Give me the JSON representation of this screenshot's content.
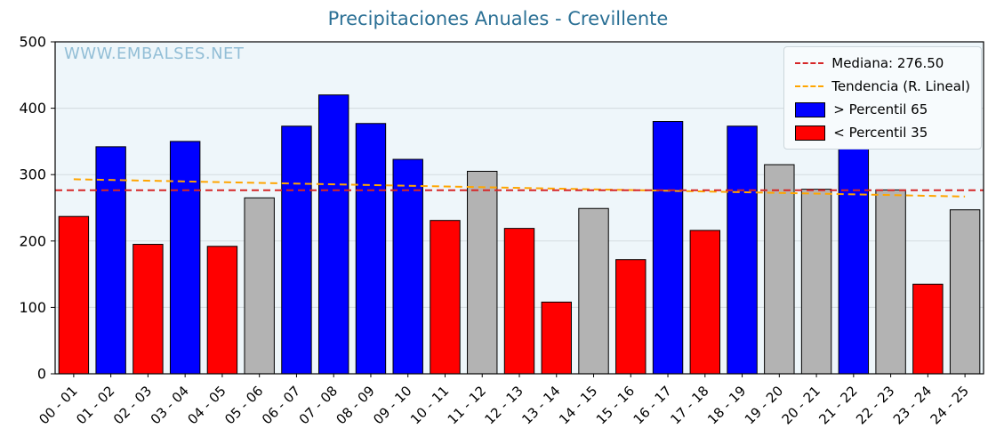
{
  "page": {
    "title": "Precipitaciones Anuales - Crevillente",
    "watermark": "WWW.EMBALSES.NET"
  },
  "legend": {
    "items": [
      {
        "label": "Mediana: 276.50",
        "swatch": "dashed-line",
        "color": "#d62728"
      },
      {
        "label": "Tendencia (R. Lineal)",
        "swatch": "dashed-line",
        "color": "#ffa500"
      },
      {
        "label": "> Percentil 65",
        "swatch": "patch",
        "color": "#0000ff"
      },
      {
        "label": "< Percentil 35",
        "swatch": "patch",
        "color": "#ff0000"
      }
    ]
  },
  "chart_data": {
    "type": "bar",
    "title": "Precipitaciones Anuales - Crevillente",
    "categories": [
      "00 - 01",
      "01 - 02",
      "02 - 03",
      "03 - 04",
      "04 - 05",
      "05 - 06",
      "06 - 07",
      "07 - 08",
      "08 - 09",
      "09 - 10",
      "10 - 11",
      "11 - 12",
      "12 - 13",
      "13 - 14",
      "14 - 15",
      "15 - 16",
      "16 - 17",
      "17 - 18",
      "18 - 19",
      "19 - 20",
      "20 - 21",
      "21 - 22",
      "22 - 23",
      "23 - 24",
      "24 - 25"
    ],
    "values": [
      237,
      342,
      195,
      350,
      192,
      265,
      373,
      420,
      377,
      323,
      231,
      305,
      219,
      108,
      249,
      172,
      380,
      216,
      373,
      315,
      278,
      415,
      277,
      135,
      247
    ],
    "classes": [
      "below",
      "above",
      "below",
      "above",
      "below",
      "mid",
      "above",
      "above",
      "above",
      "above",
      "below",
      "mid",
      "below",
      "below",
      "mid",
      "below",
      "above",
      "below",
      "above",
      "mid",
      "mid",
      "above",
      "mid",
      "below",
      "mid"
    ],
    "class_colors": {
      "above": "#0000ff",
      "below": "#ff0000",
      "mid": "#b3b3b3"
    },
    "bar_edge_color": "#000000",
    "median": 276.5,
    "median_label": "Mediana: 276.50",
    "median_color": "#d62728",
    "trend": {
      "label": "Tendencia (R. Lineal)",
      "color": "#ffa500",
      "start": 293,
      "end": 267
    },
    "ylim": [
      0,
      500
    ],
    "yticks": [
      0,
      100,
      200,
      300,
      400,
      500
    ],
    "grid": true,
    "legend_position": "upper right",
    "xlabel": "",
    "ylabel": ""
  }
}
